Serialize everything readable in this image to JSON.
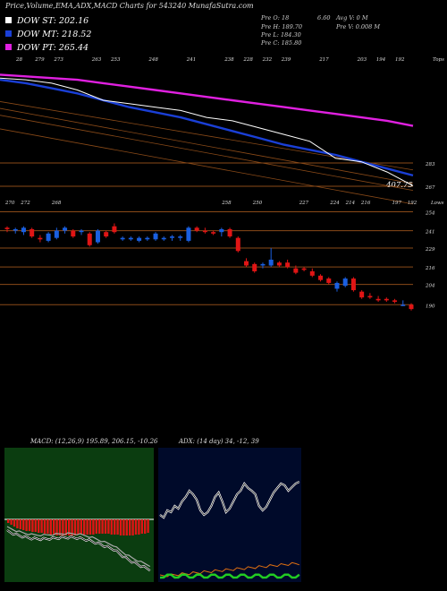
{
  "title": "Price,Volume,EMA,ADX,MACD Charts for 543240 MunafaSutra.com",
  "legend": [
    {
      "label": "DOW ST: 202.16",
      "color": "#ffffff"
    },
    {
      "label": "DOW MT: 218.52",
      "color": "#1a3fd6"
    },
    {
      "label": "DOW PT: 265.44",
      "color": "#e020e0"
    }
  ],
  "stats": {
    "pre_o": "Pre O: 18",
    "val_660": "6.60",
    "avg_v": "Avg V: 0 M",
    "pre_h": "Pre H: 189.70",
    "pre_v": "Pre V: 0.008 M",
    "pre_l": "Pre L: 184.30",
    "pre_c": "Pre C: 185.80"
  },
  "labels": {
    "tops": "Tops",
    "lows": "Lows",
    "ema_value": "407.75"
  },
  "colors": {
    "up": "#1a5fe0",
    "down": "#e01515",
    "grid": "#8a4a18",
    "macd_bg": "#0b3d10",
    "adx_bg": "#000a2a"
  },
  "chart_data": [
    {
      "type": "line",
      "title": "EMA panel",
      "top_labels": [
        "28",
        "279",
        "273",
        "",
        "263",
        "253",
        "",
        "248",
        "",
        "241",
        "",
        "238",
        "228",
        "232",
        "239",
        "",
        "217",
        "",
        "203",
        "194",
        "192"
      ],
      "right_ticks": [
        "283",
        "267"
      ],
      "series": [
        {
          "name": "DOW PT",
          "color": "#e020e0",
          "values": [
            265,
            264,
            263,
            262,
            260,
            258,
            256,
            254,
            252,
            250,
            248,
            246,
            244,
            242,
            240,
            238,
            235
          ]
        },
        {
          "name": "DOW MT",
          "color": "#1a3fd6",
          "values": [
            262,
            260,
            257,
            254,
            250,
            246,
            243,
            240,
            236,
            232,
            228,
            224,
            221,
            218,
            214,
            210,
            206
          ]
        },
        {
          "name": "DOW ST",
          "color": "#ffffff",
          "values": [
            263,
            262,
            260,
            256,
            250,
            248,
            246,
            244,
            240,
            238,
            234,
            230,
            226,
            216,
            214,
            208,
            200
          ]
        }
      ]
    },
    {
      "type": "candlestick",
      "title": "Price panel",
      "top_labels": [
        "270",
        "272",
        "",
        "268",
        "",
        "",
        "",
        "",
        "",
        "",
        "",
        "",
        "",
        "",
        "258",
        "",
        "250",
        "",
        "",
        "227",
        "",
        "224",
        "214",
        "216",
        "",
        "197",
        "192"
      ],
      "right_ticks": [
        "254",
        "241",
        "229",
        "216",
        "204",
        "190"
      ],
      "candles": [
        {
          "o": 243,
          "h": 244,
          "l": 240,
          "c": 242
        },
        {
          "o": 241,
          "h": 243,
          "l": 239,
          "c": 242
        },
        {
          "o": 240,
          "h": 244,
          "l": 238,
          "c": 243
        },
        {
          "o": 242,
          "h": 243,
          "l": 236,
          "c": 237
        },
        {
          "o": 236,
          "h": 238,
          "l": 233,
          "c": 235
        },
        {
          "o": 234,
          "h": 240,
          "l": 233,
          "c": 239
        },
        {
          "o": 236,
          "h": 243,
          "l": 235,
          "c": 241
        },
        {
          "o": 241,
          "h": 244,
          "l": 239,
          "c": 243
        },
        {
          "o": 241,
          "h": 242,
          "l": 236,
          "c": 237
        },
        {
          "o": 240,
          "h": 242,
          "l": 238,
          "c": 241
        },
        {
          "o": 239,
          "h": 240,
          "l": 230,
          "c": 231
        },
        {
          "o": 233,
          "h": 242,
          "l": 232,
          "c": 241
        },
        {
          "o": 240,
          "h": 241,
          "l": 236,
          "c": 237
        },
        {
          "o": 244,
          "h": 246,
          "l": 239,
          "c": 240
        },
        {
          "o": 235,
          "h": 237,
          "l": 234,
          "c": 236
        },
        {
          "o": 235,
          "h": 237,
          "l": 234,
          "c": 236
        },
        {
          "o": 234,
          "h": 237,
          "l": 233,
          "c": 236
        },
        {
          "o": 235,
          "h": 237,
          "l": 234,
          "c": 236
        },
        {
          "o": 235,
          "h": 240,
          "l": 234,
          "c": 239
        },
        {
          "o": 235,
          "h": 237,
          "l": 234,
          "c": 236
        },
        {
          "o": 236,
          "h": 238,
          "l": 234,
          "c": 237
        },
        {
          "o": 236,
          "h": 238,
          "l": 234,
          "c": 237
        },
        {
          "o": 234,
          "h": 244,
          "l": 233,
          "c": 243
        },
        {
          "o": 243,
          "h": 244,
          "l": 240,
          "c": 241
        },
        {
          "o": 241,
          "h": 243,
          "l": 239,
          "c": 240
        },
        {
          "o": 240,
          "h": 241,
          "l": 238,
          "c": 239
        },
        {
          "o": 240,
          "h": 243,
          "l": 237,
          "c": 242
        },
        {
          "o": 242,
          "h": 243,
          "l": 236,
          "c": 237
        },
        {
          "o": 236,
          "h": 237,
          "l": 226,
          "c": 227
        },
        {
          "o": 220,
          "h": 222,
          "l": 216,
          "c": 217
        },
        {
          "o": 218,
          "h": 219,
          "l": 212,
          "c": 213
        },
        {
          "o": 217,
          "h": 219,
          "l": 215,
          "c": 218
        },
        {
          "o": 217,
          "h": 229,
          "l": 216,
          "c": 221
        },
        {
          "o": 219,
          "h": 220,
          "l": 216,
          "c": 217
        },
        {
          "o": 219,
          "h": 221,
          "l": 215,
          "c": 216
        },
        {
          "o": 215,
          "h": 217,
          "l": 211,
          "c": 212
        },
        {
          "o": 215,
          "h": 216,
          "l": 213,
          "c": 214
        },
        {
          "o": 213,
          "h": 215,
          "l": 209,
          "c": 210
        },
        {
          "o": 210,
          "h": 211,
          "l": 206,
          "c": 207
        },
        {
          "o": 208,
          "h": 209,
          "l": 204,
          "c": 205
        },
        {
          "o": 201,
          "h": 206,
          "l": 199,
          "c": 205
        },
        {
          "o": 203,
          "h": 209,
          "l": 202,
          "c": 208
        },
        {
          "o": 208,
          "h": 209,
          "l": 199,
          "c": 200
        },
        {
          "o": 199,
          "h": 200,
          "l": 194,
          "c": 195
        },
        {
          "o": 196,
          "h": 198,
          "l": 194,
          "c": 195
        },
        {
          "o": 194,
          "h": 196,
          "l": 192,
          "c": 193
        },
        {
          "o": 194,
          "h": 195,
          "l": 192,
          "c": 193
        },
        {
          "o": 193,
          "h": 194,
          "l": 191,
          "c": 192
        },
        {
          "o": 190,
          "h": 193,
          "l": 189,
          "c": 190
        },
        {
          "o": 190,
          "h": 191,
          "l": 186,
          "c": 187
        }
      ]
    },
    {
      "type": "bar",
      "title": "MACD",
      "label": "MACD: (12,26,9) 195.89, 206.15, -10.26",
      "series": [
        {
          "name": "macd_hist",
          "color": "#e01515"
        },
        {
          "name": "macd",
          "color": "#ffffff"
        },
        {
          "name": "signal",
          "color": "#aaaaaa"
        }
      ]
    },
    {
      "type": "line",
      "title": "ADX",
      "label": "ADX: (14 day) 34, -12, 39",
      "series": [
        {
          "name": "adx",
          "color": "#ffffff"
        },
        {
          "name": "plus_di",
          "color": "#22cc22"
        },
        {
          "name": "minus_di",
          "color": "#e07010"
        }
      ]
    }
  ]
}
